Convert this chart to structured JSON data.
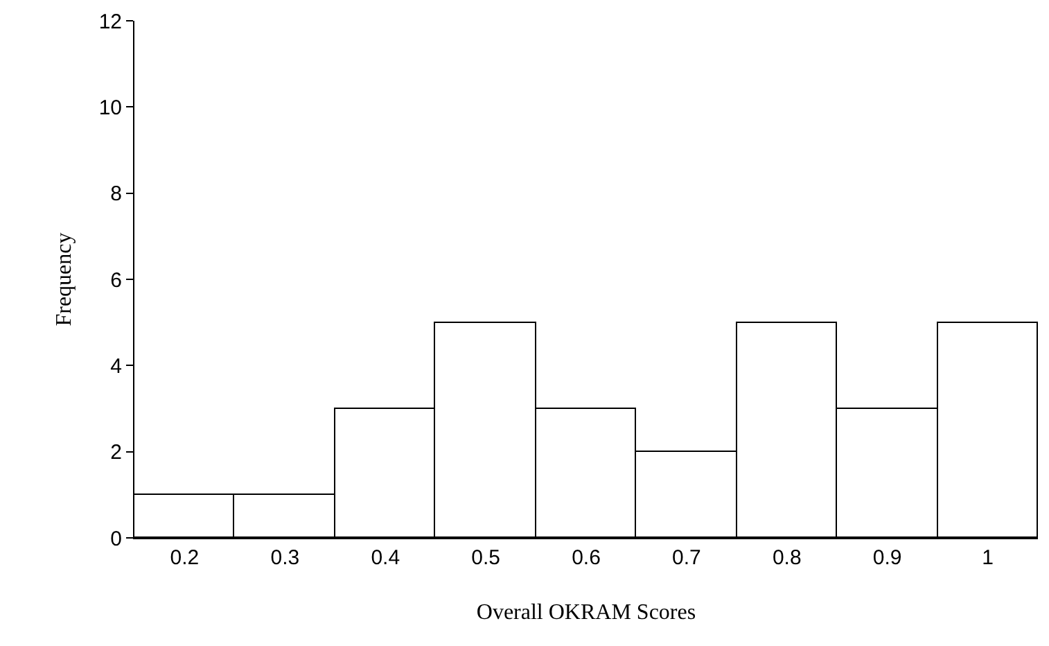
{
  "chart_data": {
    "type": "bar",
    "xlabel": "Overall OKRAM Scores",
    "ylabel": "Frequency",
    "categories": [
      "0.2",
      "0.3",
      "0.4",
      "0.5",
      "0.6",
      "0.7",
      "0.8",
      "0.9",
      "1"
    ],
    "values": [
      1,
      1,
      3,
      5,
      3,
      2,
      5,
      3,
      5
    ],
    "color": "#ffffff",
    "ylim": [
      0,
      12
    ],
    "yticks": [
      0,
      2,
      4,
      6,
      8,
      10,
      12
    ]
  }
}
